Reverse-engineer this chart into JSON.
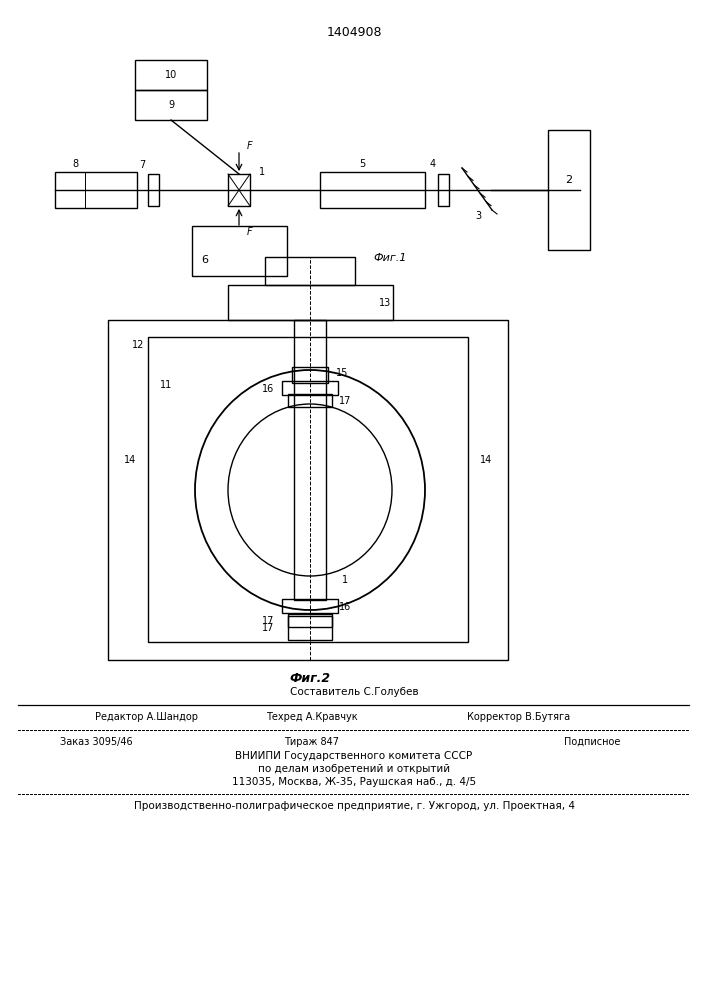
{
  "patent_number": "1404908",
  "fig1_label": "Фиг.1",
  "fig2_label": "Фиг.2",
  "bg_color": "#ffffff",
  "line_color": "#000000",
  "footer_author": "Составитель С.Голубев",
  "footer_editor": "Редактор А.Шандор",
  "footer_techred": "Техред А.Кравчук",
  "footer_corrector": "Корректор В.Бутяга",
  "footer_order": "Заказ 3095/46",
  "footer_tirazh": "Тираж 847",
  "footer_podp": "Подписное",
  "footer_vniip1": "ВНИИПИ Государственного комитета СССР",
  "footer_vniip2": "по делам изобретений и открытий",
  "footer_addr": "113035, Москва, Ж-35, Раушская наб., д. 4/5",
  "footer_prod": "Производственно-полиграфическое предприятие, г. Ужгород, ул. Проектная, 4"
}
